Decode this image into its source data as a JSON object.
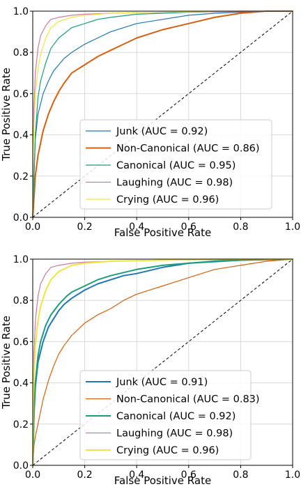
{
  "chart_data": [
    {
      "type": "line",
      "xlabel": "False Positive Rate",
      "ylabel": "True Positive Rate",
      "xlim": [
        0,
        1
      ],
      "ylim": [
        0,
        1
      ],
      "xticks": [
        "0.0",
        "0.2",
        "0.4",
        "0.6",
        "0.8",
        "1.0"
      ],
      "yticks": [
        "0.0",
        "0.2",
        "0.4",
        "0.6",
        "0.8",
        "1.0"
      ],
      "grid": true,
      "legend_position": "bottom-right",
      "reference_line": "dashed diagonal",
      "series": [
        {
          "name": "Junk (AUC = 0.92)",
          "color": "#1f77b4",
          "width": "thin",
          "x": [
            0,
            0.005,
            0.01,
            0.02,
            0.04,
            0.06,
            0.08,
            0.1,
            0.12,
            0.15,
            0.2,
            0.25,
            0.3,
            0.35,
            0.4,
            0.5,
            0.6,
            0.7,
            0.8,
            0.9,
            1.0
          ],
          "y": [
            0,
            0.2,
            0.38,
            0.5,
            0.6,
            0.66,
            0.71,
            0.74,
            0.77,
            0.8,
            0.84,
            0.87,
            0.9,
            0.92,
            0.94,
            0.96,
            0.98,
            0.99,
            0.995,
            1.0,
            1.0
          ]
        },
        {
          "name": "Non-Canonical (AUC = 0.86)",
          "color": "#d95f0e",
          "width": "thick",
          "x": [
            0,
            0.005,
            0.01,
            0.02,
            0.04,
            0.06,
            0.08,
            0.1,
            0.12,
            0.15,
            0.2,
            0.25,
            0.3,
            0.35,
            0.4,
            0.45,
            0.5,
            0.6,
            0.7,
            0.8,
            0.9,
            1.0
          ],
          "y": [
            0,
            0.1,
            0.2,
            0.3,
            0.42,
            0.5,
            0.56,
            0.61,
            0.65,
            0.7,
            0.74,
            0.78,
            0.81,
            0.84,
            0.87,
            0.89,
            0.91,
            0.94,
            0.97,
            0.99,
            1.0,
            1.0
          ]
        },
        {
          "name": "Canonical (AUC = 0.95)",
          "color": "#1a9e77",
          "width": "thin",
          "x": [
            0,
            0.005,
            0.01,
            0.02,
            0.03,
            0.05,
            0.07,
            0.1,
            0.13,
            0.15,
            0.2,
            0.25,
            0.3,
            0.4,
            0.5,
            0.6,
            0.8,
            1.0
          ],
          "y": [
            0,
            0.22,
            0.4,
            0.58,
            0.66,
            0.75,
            0.82,
            0.87,
            0.9,
            0.92,
            0.94,
            0.96,
            0.97,
            0.985,
            0.99,
            0.995,
            1.0,
            1.0
          ]
        },
        {
          "name": "Laughing (AUC = 0.98)",
          "color": "#cc79a7",
          "width": "thin",
          "x": [
            0,
            0.002,
            0.005,
            0.01,
            0.02,
            0.03,
            0.05,
            0.07,
            0.1,
            0.15,
            0.2,
            0.3,
            0.5,
            1.0
          ],
          "y": [
            0,
            0.35,
            0.55,
            0.7,
            0.82,
            0.88,
            0.93,
            0.96,
            0.97,
            0.98,
            0.985,
            0.99,
            0.995,
            1.0
          ]
        },
        {
          "name": "Crying (AUC = 0.96)",
          "color": "#f0e442",
          "width": "thin",
          "x": [
            0,
            0.002,
            0.005,
            0.01,
            0.02,
            0.03,
            0.05,
            0.07,
            0.1,
            0.15,
            0.2,
            0.3,
            0.5,
            0.7,
            1.0
          ],
          "y": [
            0,
            0.3,
            0.45,
            0.6,
            0.72,
            0.79,
            0.87,
            0.92,
            0.95,
            0.97,
            0.98,
            0.99,
            0.995,
            1.0,
            1.0
          ]
        }
      ]
    },
    {
      "type": "line",
      "xlabel": "False Positive Rate",
      "ylabel": "True Positive Rate",
      "xlim": [
        0,
        1
      ],
      "ylim": [
        0,
        1
      ],
      "xticks": [
        "0.0",
        "0.2",
        "0.4",
        "0.6",
        "0.8",
        "1.0"
      ],
      "yticks": [
        "0.0",
        "0.2",
        "0.4",
        "0.6",
        "0.8",
        "1.0"
      ],
      "grid": true,
      "legend_position": "bottom-right",
      "reference_line": "dashed diagonal",
      "series": [
        {
          "name": "Junk (AUC = 0.91)",
          "color": "#1f77b4",
          "width": "thick",
          "x": [
            0,
            0.005,
            0.01,
            0.02,
            0.04,
            0.06,
            0.08,
            0.1,
            0.12,
            0.15,
            0.2,
            0.25,
            0.3,
            0.35,
            0.4,
            0.5,
            0.6,
            0.7,
            0.8,
            0.9,
            1.0
          ],
          "y": [
            0,
            0.25,
            0.38,
            0.5,
            0.6,
            0.67,
            0.71,
            0.75,
            0.78,
            0.81,
            0.85,
            0.88,
            0.9,
            0.92,
            0.93,
            0.96,
            0.98,
            0.99,
            0.995,
            1.0,
            1.0
          ]
        },
        {
          "name": "Non-Canonical (AUC = 0.83)",
          "color": "#d95f0e",
          "width": "thin",
          "x": [
            0,
            0.005,
            0.01,
            0.02,
            0.04,
            0.06,
            0.08,
            0.1,
            0.12,
            0.15,
            0.2,
            0.25,
            0.3,
            0.35,
            0.4,
            0.45,
            0.5,
            0.6,
            0.7,
            0.8,
            0.9,
            1.0
          ],
          "y": [
            0,
            0.1,
            0.14,
            0.2,
            0.32,
            0.41,
            0.48,
            0.54,
            0.58,
            0.63,
            0.69,
            0.73,
            0.76,
            0.8,
            0.83,
            0.85,
            0.87,
            0.91,
            0.95,
            0.97,
            0.99,
            1.0
          ]
        },
        {
          "name": "Canonical (AUC = 0.92)",
          "color": "#1a9e77",
          "width": "thick",
          "x": [
            0,
            0.005,
            0.01,
            0.02,
            0.03,
            0.05,
            0.07,
            0.1,
            0.13,
            0.15,
            0.2,
            0.25,
            0.3,
            0.4,
            0.5,
            0.6,
            0.8,
            1.0
          ],
          "y": [
            0,
            0.28,
            0.4,
            0.53,
            0.6,
            0.68,
            0.73,
            0.78,
            0.82,
            0.84,
            0.87,
            0.9,
            0.92,
            0.95,
            0.97,
            0.98,
            0.995,
            1.0
          ]
        },
        {
          "name": "Laughing (AUC = 0.98)",
          "color": "#cc79a7",
          "width": "thin",
          "x": [
            0,
            0.002,
            0.005,
            0.01,
            0.02,
            0.03,
            0.05,
            0.07,
            0.1,
            0.15,
            0.2,
            0.3,
            0.5,
            1.0
          ],
          "y": [
            0,
            0.35,
            0.55,
            0.7,
            0.82,
            0.88,
            0.93,
            0.96,
            0.97,
            0.98,
            0.985,
            0.99,
            0.995,
            1.0
          ]
        },
        {
          "name": "Crying (AUC = 0.96)",
          "color": "#f0e442",
          "width": "thick",
          "x": [
            0,
            0.002,
            0.005,
            0.01,
            0.02,
            0.03,
            0.05,
            0.07,
            0.1,
            0.15,
            0.2,
            0.3,
            0.5,
            0.7,
            1.0
          ],
          "y": [
            0,
            0.3,
            0.45,
            0.58,
            0.7,
            0.77,
            0.85,
            0.9,
            0.94,
            0.97,
            0.98,
            0.99,
            0.995,
            1.0,
            1.0
          ]
        }
      ]
    }
  ]
}
